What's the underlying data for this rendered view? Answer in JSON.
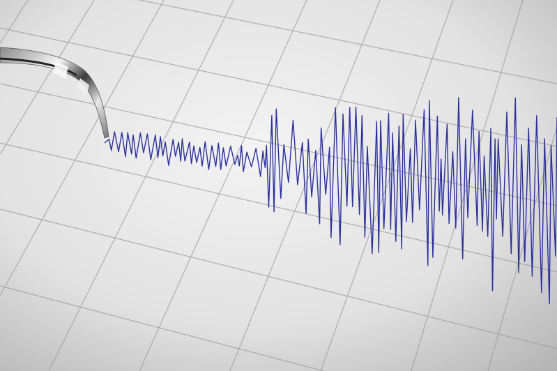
{
  "colors": {
    "paper_light": "#f2f2f2",
    "paper_dark": "#b9b9b9",
    "grid": "#9a9a9a",
    "trace": "#2a2f9c",
    "needle_metal": "#cfcfcf"
  },
  "icons": [
    "seismograph-needle-icon"
  ]
}
